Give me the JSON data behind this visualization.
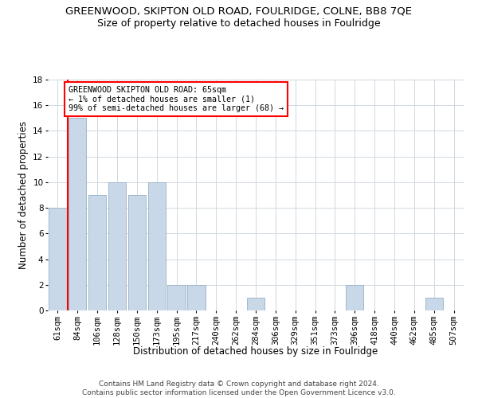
{
  "title": "GREENWOOD, SKIPTON OLD ROAD, FOULRIDGE, COLNE, BB8 7QE",
  "subtitle": "Size of property relative to detached houses in Foulridge",
  "xlabel": "Distribution of detached houses by size in Foulridge",
  "ylabel": "Number of detached properties",
  "categories": [
    "61sqm",
    "84sqm",
    "106sqm",
    "128sqm",
    "150sqm",
    "173sqm",
    "195sqm",
    "217sqm",
    "240sqm",
    "262sqm",
    "284sqm",
    "306sqm",
    "329sqm",
    "351sqm",
    "373sqm",
    "396sqm",
    "418sqm",
    "440sqm",
    "462sqm",
    "485sqm",
    "507sqm"
  ],
  "values": [
    8,
    15,
    9,
    10,
    9,
    10,
    2,
    2,
    0,
    0,
    1,
    0,
    0,
    0,
    0,
    2,
    0,
    0,
    0,
    1,
    0
  ],
  "bar_color": "#c8d8e8",
  "bar_edge_color": "#a0b8cc",
  "vline_color": "red",
  "ylim": [
    0,
    18
  ],
  "yticks": [
    0,
    2,
    4,
    6,
    8,
    10,
    12,
    14,
    16,
    18
  ],
  "annotation_text": "GREENWOOD SKIPTON OLD ROAD: 65sqm\n← 1% of detached houses are smaller (1)\n99% of semi-detached houses are larger (68) →",
  "footer_text": "Contains HM Land Registry data © Crown copyright and database right 2024.\nContains public sector information licensed under the Open Government Licence v3.0.",
  "grid_color": "#d0d8e0",
  "background_color": "#ffffff",
  "title_fontsize": 9.5,
  "subtitle_fontsize": 9,
  "axis_label_fontsize": 8.5,
  "tick_fontsize": 7.5,
  "footer_fontsize": 6.5
}
